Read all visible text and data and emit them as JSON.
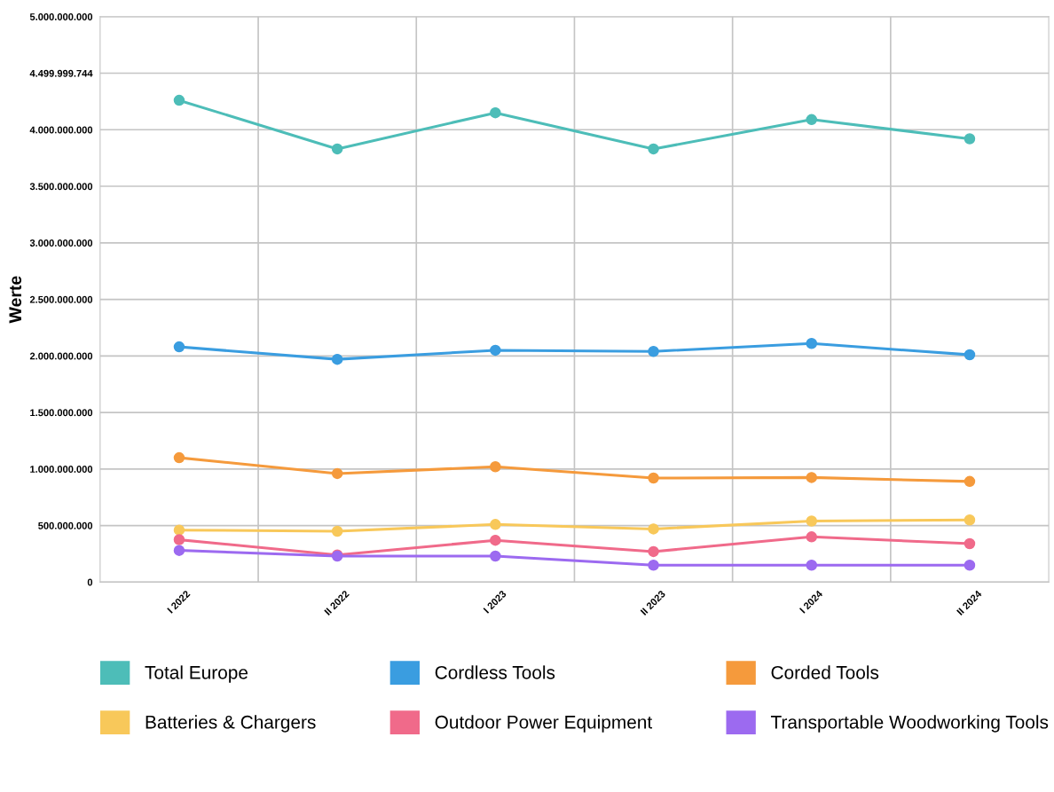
{
  "chart_data": {
    "type": "line",
    "ylabel": "Werte",
    "categories": [
      "I 2022",
      "II 2022",
      "I 2023",
      "II 2023",
      "I 2024",
      "II 2024"
    ],
    "series": [
      {
        "name": "Total Europe",
        "color": "#4dbdb8",
        "values": [
          4260000000,
          3830000000,
          4150000000,
          3830000000,
          4090000000,
          3920000000
        ]
      },
      {
        "name": "Cordless Tools",
        "color": "#3a9de0",
        "values": [
          2080000000,
          1970000000,
          2050000000,
          2040000000,
          2110000000,
          2010000000
        ]
      },
      {
        "name": "Corded Tools",
        "color": "#f59a3c",
        "values": [
          1100000000,
          960000000,
          1020000000,
          920000000,
          925000000,
          890000000
        ]
      },
      {
        "name": "Batteries & Chargers",
        "color": "#f8c85a",
        "values": [
          460000000,
          450000000,
          510000000,
          470000000,
          540000000,
          550000000
        ]
      },
      {
        "name": "Outdoor Power Equipment",
        "color": "#f06a8a",
        "values": [
          375000000,
          240000000,
          370000000,
          270000000,
          400000000,
          340000000
        ]
      },
      {
        "name": "Transportable Woodworking Tools",
        "color": "#9c6af0",
        "values": [
          280000000,
          230000000,
          230000000,
          150000000,
          150000000,
          150000000
        ]
      }
    ],
    "ylim": [
      0,
      5000000000
    ],
    "yticks": [
      0,
      {
        "value": 500000000,
        "label": "500.000.000"
      },
      {
        "value": 1000000000,
        "label": "1.000.000.000"
      },
      {
        "value": 1500000000,
        "label": "1.500.000.000"
      },
      {
        "value": 2000000000,
        "label": "2.000.000.000"
      },
      {
        "value": 2500000000,
        "label": "2.500.000.000"
      },
      {
        "value": 3000000000,
        "label": "3.000.000.000"
      },
      {
        "value": 3500000000,
        "label": "3.500.000.000"
      },
      {
        "value": 4000000000,
        "label": "4.000.000.000"
      },
      {
        "value": 4499999744,
        "label": "4.499.999.744"
      },
      {
        "value": 5000000000,
        "label": "5.000.000.000"
      }
    ],
    "grid": true,
    "legend": "bottom",
    "marker": "circle",
    "line_style": "solid"
  }
}
